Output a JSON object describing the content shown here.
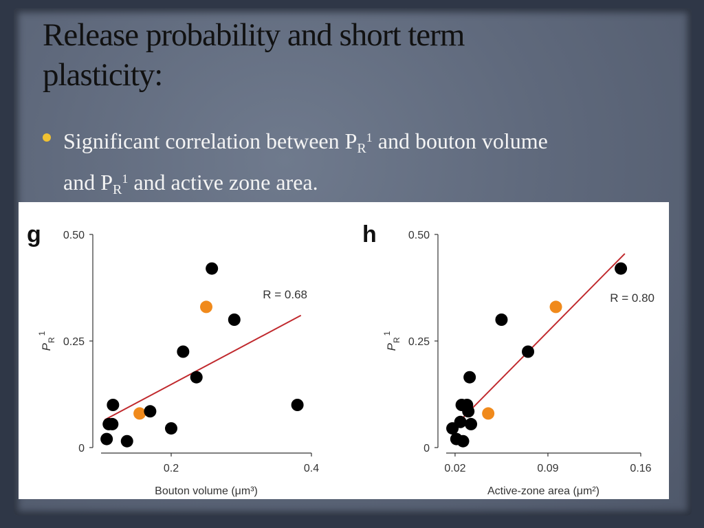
{
  "slide": {
    "title_line1": "Release probability and short term",
    "title_line2": "plasticity:",
    "bullet": {
      "part1": "Significant correlation between P",
      "sub1": "R",
      "sup1": "1",
      "part2": " and bouton volume",
      "part3": "and P",
      "sub2": "R",
      "sup2": "1",
      "part4": "  and active zone area."
    }
  },
  "colors": {
    "dot_black": "#000000",
    "dot_orange": "#f08a1c",
    "fit_line": "#c0292d",
    "bullet": "#f1c232"
  },
  "chart_data": [
    {
      "type": "scatter",
      "panel_label": "g",
      "xlabel": "Bouton volume (μm³)",
      "ylabel": "P",
      "ylabel_sub": "R",
      "ylabel_sup": "1",
      "xlim": [
        0.1,
        0.4
      ],
      "ylim": [
        0,
        0.5
      ],
      "x_ticks": [
        0.2,
        0.4
      ],
      "x_tick_labels": [
        "0.2",
        "0.4"
      ],
      "y_ticks": [
        0,
        0.25,
        0.5
      ],
      "y_tick_labels": [
        "0",
        "0.25",
        "0.50"
      ],
      "annotation": "R = 0.68",
      "fit_line": [
        [
          0.105,
          0.065
        ],
        [
          0.385,
          0.31
        ]
      ],
      "points": [
        {
          "x": 0.117,
          "y": 0.1,
          "color": "black"
        },
        {
          "x": 0.111,
          "y": 0.055,
          "color": "black"
        },
        {
          "x": 0.116,
          "y": 0.055,
          "color": "black"
        },
        {
          "x": 0.108,
          "y": 0.02,
          "color": "black"
        },
        {
          "x": 0.137,
          "y": 0.015,
          "color": "black"
        },
        {
          "x": 0.155,
          "y": 0.08,
          "color": "orange"
        },
        {
          "x": 0.17,
          "y": 0.085,
          "color": "black"
        },
        {
          "x": 0.2,
          "y": 0.045,
          "color": "black"
        },
        {
          "x": 0.217,
          "y": 0.225,
          "color": "black"
        },
        {
          "x": 0.236,
          "y": 0.165,
          "color": "black"
        },
        {
          "x": 0.25,
          "y": 0.33,
          "color": "orange"
        },
        {
          "x": 0.258,
          "y": 0.42,
          "color": "black"
        },
        {
          "x": 0.29,
          "y": 0.3,
          "color": "black"
        },
        {
          "x": 0.38,
          "y": 0.1,
          "color": "black"
        }
      ]
    },
    {
      "type": "scatter",
      "panel_label": "h",
      "xlabel": "Active-zone area (μm²)",
      "ylabel": "P",
      "ylabel_sub": "R",
      "ylabel_sup": "1",
      "xlim": [
        0.0133,
        0.16
      ],
      "ylim": [
        0,
        0.5
      ],
      "x_ticks": [
        0.02,
        0.09,
        0.16
      ],
      "x_tick_labels": [
        "0.02",
        "0.09",
        "0.16"
      ],
      "y_ticks": [
        0,
        0.25,
        0.5
      ],
      "y_tick_labels": [
        "0",
        "0.25",
        "0.50"
      ],
      "annotation": "R = 0.80",
      "fit_line": [
        [
          0.018,
          0.045
        ],
        [
          0.148,
          0.455
        ]
      ],
      "points": [
        {
          "x": 0.018,
          "y": 0.045,
          "color": "black"
        },
        {
          "x": 0.021,
          "y": 0.02,
          "color": "black"
        },
        {
          "x": 0.024,
          "y": 0.06,
          "color": "black"
        },
        {
          "x": 0.026,
          "y": 0.015,
          "color": "black"
        },
        {
          "x": 0.025,
          "y": 0.1,
          "color": "black"
        },
        {
          "x": 0.029,
          "y": 0.1,
          "color": "black"
        },
        {
          "x": 0.03,
          "y": 0.085,
          "color": "black"
        },
        {
          "x": 0.031,
          "y": 0.165,
          "color": "black"
        },
        {
          "x": 0.032,
          "y": 0.055,
          "color": "black"
        },
        {
          "x": 0.045,
          "y": 0.08,
          "color": "orange"
        },
        {
          "x": 0.055,
          "y": 0.3,
          "color": "black"
        },
        {
          "x": 0.075,
          "y": 0.225,
          "color": "black"
        },
        {
          "x": 0.096,
          "y": 0.33,
          "color": "orange"
        },
        {
          "x": 0.145,
          "y": 0.42,
          "color": "black"
        }
      ]
    }
  ]
}
